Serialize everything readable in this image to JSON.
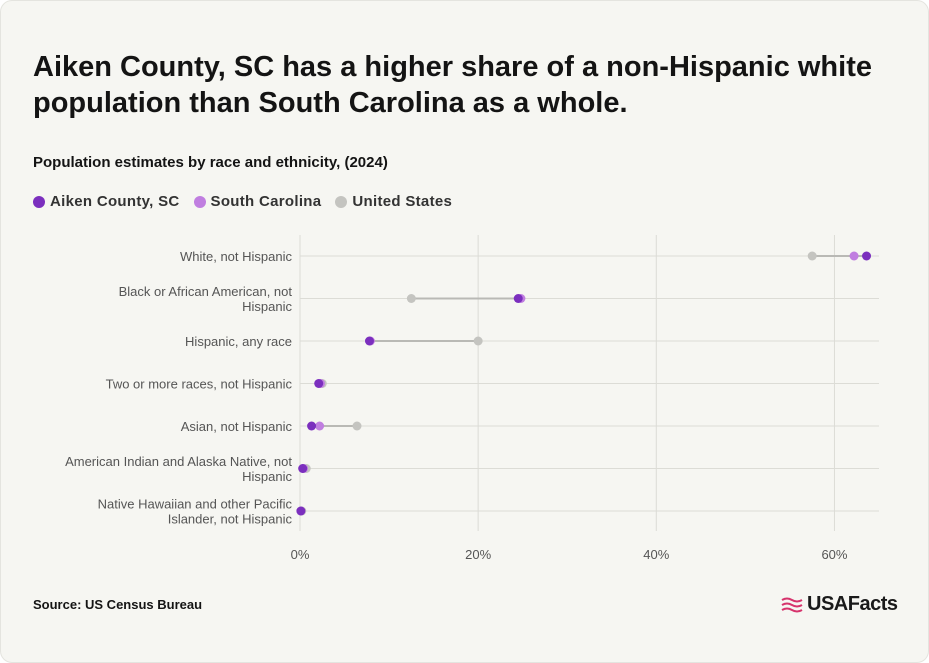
{
  "title": "Aiken County, SC has a higher share of a non-Hispanic white population than South Carolina as a whole.",
  "subtitle": "Population estimates by race and ethnicity, (2024)",
  "source": "Source: US Census Bureau",
  "logo_text": "USAFacts",
  "colors": {
    "aiken": "#7b2fbe",
    "south_carolina": "#c07ee0",
    "united_states": "#c4c4c0",
    "grid": "#dcdcd6",
    "connector": "#b9b9b5"
  },
  "chart_data": {
    "type": "dot-plot",
    "categories": [
      "White, not Hispanic",
      "Black or African American, not Hispanic",
      "Hispanic, any race",
      "Two or more races, not Hispanic",
      "Asian, not Hispanic",
      "American Indian and Alaska Native, not Hispanic",
      "Native Hawaiian and other Pacific Islander, not Hispanic"
    ],
    "series": [
      {
        "name": "Aiken County, SC",
        "color": "#7b2fbe",
        "values": [
          63.6,
          24.5,
          7.8,
          2.1,
          1.3,
          0.3,
          0.1
        ]
      },
      {
        "name": "South Carolina",
        "color": "#c07ee0",
        "values": [
          62.2,
          24.8,
          7.9,
          2.3,
          2.2,
          0.4,
          0.1
        ]
      },
      {
        "name": "United States",
        "color": "#c4c4c0",
        "values": [
          57.5,
          12.5,
          20.0,
          2.5,
          6.4,
          0.7,
          0.2
        ]
      }
    ],
    "xlim": [
      0,
      65
    ],
    "xticks": [
      0,
      20,
      40,
      60
    ],
    "xtick_labels": [
      "0%",
      "20%",
      "40%",
      "60%"
    ],
    "legend_position": "top-left",
    "grid": true
  }
}
